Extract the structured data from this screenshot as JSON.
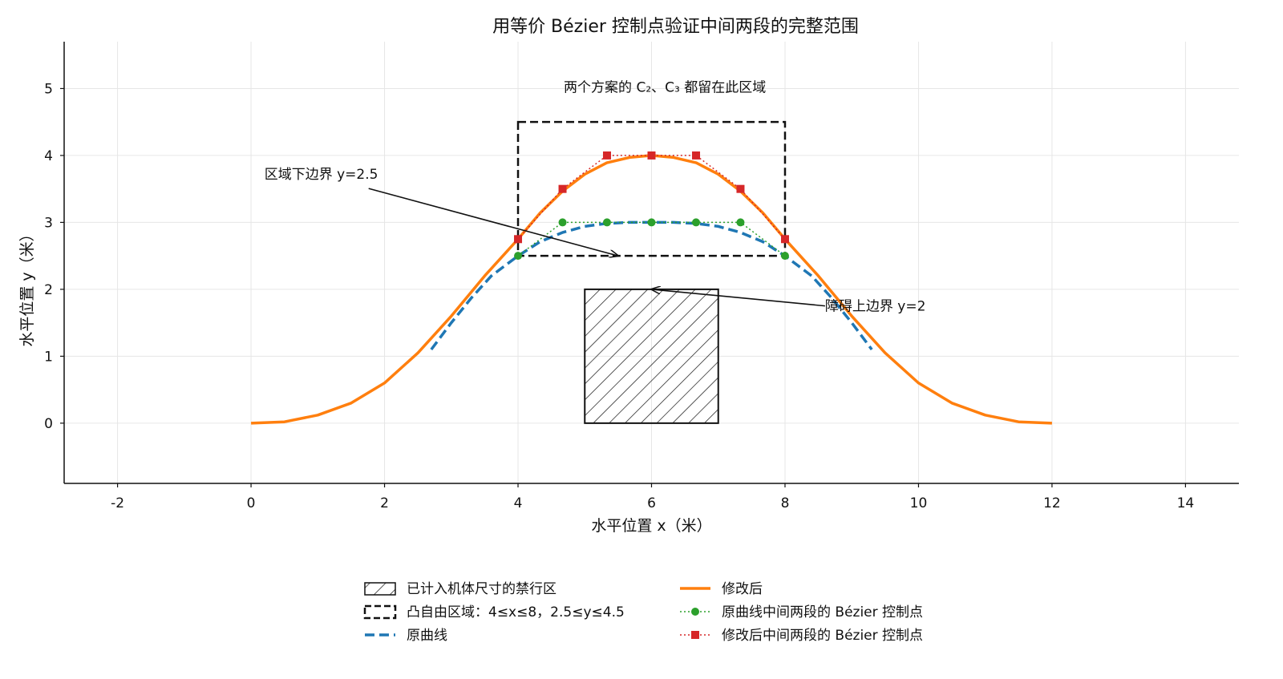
{
  "chart_data": {
    "type": "line",
    "title": "用等价 Bézier 控制点验证中间两段的完整范围",
    "xlabel": "水平位置 x（米）",
    "ylabel": "水平位置 y（米）",
    "xlim": [
      -2.8,
      14.8
    ],
    "ylim": [
      -0.9,
      5.7
    ],
    "xticks": [
      -2,
      0,
      2,
      4,
      6,
      8,
      10,
      12,
      14
    ],
    "yticks": [
      0,
      1,
      2,
      3,
      4,
      5
    ],
    "grid": true,
    "legend_position": "bottom-center",
    "series": [
      {
        "name": "原曲线",
        "style": "dashed",
        "color": "#1f77b4",
        "x": [
          2.7,
          3.0,
          3.3,
          3.6,
          4.0,
          4.33,
          4.67,
          5.0,
          5.33,
          5.67,
          6.0,
          6.33,
          6.67,
          7.0,
          7.33,
          7.67,
          8.0,
          8.4,
          8.7,
          9.0,
          9.3
        ],
        "y": [
          1.1,
          1.5,
          1.87,
          2.2,
          2.5,
          2.71,
          2.85,
          2.94,
          2.985,
          3.0,
          3.0,
          3.0,
          2.985,
          2.94,
          2.85,
          2.71,
          2.5,
          2.2,
          1.87,
          1.5,
          1.1
        ]
      },
      {
        "name": "修改后",
        "style": "solid",
        "color": "#ff7f0e",
        "x": [
          0.0,
          0.5,
          1.0,
          1.5,
          2.0,
          2.5,
          3.0,
          3.5,
          4.0,
          4.33,
          4.67,
          5.0,
          5.33,
          5.67,
          6.0,
          6.33,
          6.67,
          7.0,
          7.33,
          7.67,
          8.0,
          8.5,
          9.0,
          9.5,
          10.0,
          10.5,
          11.0,
          11.5,
          12.0
        ],
        "y": [
          0.0,
          0.02,
          0.12,
          0.3,
          0.6,
          1.05,
          1.6,
          2.2,
          2.75,
          3.14,
          3.47,
          3.72,
          3.89,
          3.97,
          4.0,
          3.97,
          3.89,
          3.72,
          3.47,
          3.14,
          2.75,
          2.2,
          1.6,
          1.05,
          0.6,
          0.3,
          0.12,
          0.02,
          0.0
        ]
      },
      {
        "name": "原曲线中间两段的 Bézier 控制点",
        "style": "dotted-marker-circle",
        "color": "#2ca02c",
        "x": [
          4.0,
          4.667,
          5.333,
          6.0,
          6.667,
          7.333,
          8.0
        ],
        "y": [
          2.5,
          3.0,
          3.0,
          3.0,
          3.0,
          3.0,
          2.5
        ]
      },
      {
        "name": "修改后中间两段的 Bézier 控制点",
        "style": "dotted-marker-square",
        "color": "#d62728",
        "x": [
          4.0,
          4.667,
          5.333,
          6.0,
          6.667,
          7.333,
          8.0
        ],
        "y": [
          2.75,
          3.5,
          4.0,
          4.0,
          4.0,
          3.5,
          2.75
        ]
      }
    ],
    "regions": [
      {
        "name": "已计入机体尺寸的禁行区",
        "style": "hatched",
        "x": [
          5.0,
          7.0
        ],
        "y": [
          0.0,
          2.0
        ]
      },
      {
        "name": "凸自由区域：4≤x≤8，2.5≤y≤4.5",
        "style": "dashed-box",
        "x": [
          4.0,
          8.0
        ],
        "y": [
          2.5,
          4.5
        ]
      }
    ],
    "annotations": [
      {
        "text": "区域下边界 y=2.5",
        "text_at": [
          0.2,
          3.65
        ],
        "arrow_to": [
          5.5,
          2.5
        ]
      },
      {
        "text": "障碍上边界 y=2",
        "text_at": [
          8.6,
          1.68
        ],
        "arrow_to": [
          6.0,
          2.0
        ]
      }
    ],
    "region_caption": "两个方案的 C₂、C₃ 都留在此区域",
    "legend": {
      "left": [
        {
          "label": "已计入机体尺寸的禁行区",
          "kind": "hatch"
        },
        {
          "label": "凸自由区域：4≤x≤8，2.5≤y≤4.5",
          "kind": "dashbox"
        },
        {
          "label": "原曲线",
          "kind": "dashline"
        }
      ],
      "right": [
        {
          "label": "修改后",
          "kind": "solidline"
        },
        {
          "label": "原曲线中间两段的 Bézier 控制点",
          "kind": "circle-marker"
        },
        {
          "label": "修改后中间两段的 Bézier 控制点",
          "kind": "square-marker"
        }
      ]
    }
  }
}
